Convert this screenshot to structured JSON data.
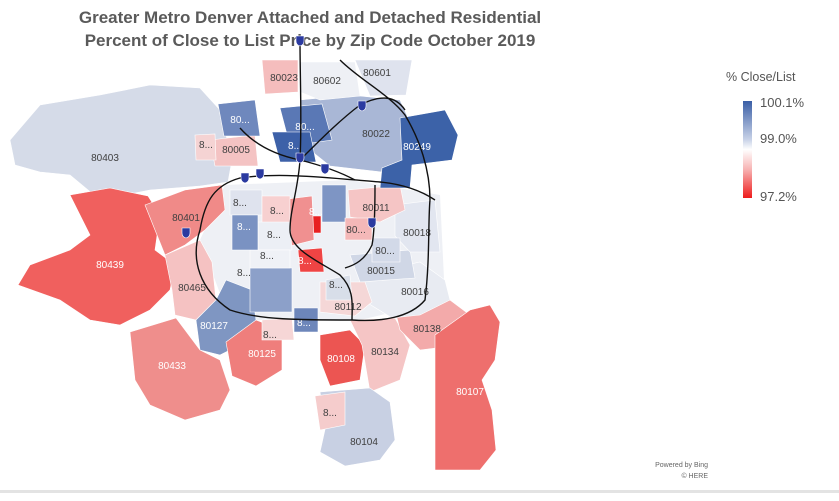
{
  "title": {
    "line1": "Greater Metro Denver Attached and Detached Residential",
    "line2": "Percent of Close to List Price by Zip Code October 2019"
  },
  "legend": {
    "title": "% Close/List",
    "max": "100.1%",
    "mid": "99.0%",
    "min": "97.2%",
    "colors": {
      "high": "#3a5fa6",
      "mid": "#ffffff",
      "low": "#ee1c1c"
    }
  },
  "attribution": {
    "line1": "Powered by Bing",
    "line2": "© HERE"
  },
  "regions": [
    {
      "label": "80403",
      "fill": "#d5dbe8"
    },
    {
      "label": "80439",
      "fill": "#f0605e"
    },
    {
      "label": "80401",
      "fill": "#f08a88"
    },
    {
      "label": "80465",
      "fill": "#f5c2c2"
    },
    {
      "label": "80127",
      "fill": "#7f96c2"
    },
    {
      "label": "80433",
      "fill": "#ef8e8c"
    },
    {
      "label": "80125",
      "fill": "#ef7e7c"
    },
    {
      "label": "80108",
      "fill": "#ec5552"
    },
    {
      "label": "80134",
      "fill": "#f5c5c5"
    },
    {
      "label": "80138",
      "fill": "#f3aaaa"
    },
    {
      "label": "80107",
      "fill": "#ee6f6d"
    },
    {
      "label": "80104",
      "fill": "#c8d0e3"
    },
    {
      "label": "8...",
      "fill": "#f5cccc"
    },
    {
      "label": "80016",
      "fill": "#e8ebf2"
    },
    {
      "label": "80015",
      "fill": "#d0d7e6"
    },
    {
      "label": "80018",
      "fill": "#e2e6f0"
    },
    {
      "label": "80011",
      "fill": "#f5c5c5"
    },
    {
      "label": "80022",
      "fill": "#a9b7d6"
    },
    {
      "label": "80249",
      "fill": "#3c62a8"
    },
    {
      "label": "80601",
      "fill": "#dfe3ee"
    },
    {
      "label": "80602",
      "fill": "#eef0f5"
    },
    {
      "label": "80023",
      "fill": "#f5bdbd"
    },
    {
      "label": "80005",
      "fill": "#f4c3c3"
    },
    {
      "label": "80112",
      "fill": "#f5d7d7"
    },
    {
      "label": "80...",
      "fill": "#6f88bd"
    },
    {
      "label": "8...",
      "fill": "#f5d3d3"
    },
    {
      "label": "80...",
      "fill": "#5a78b5"
    },
    {
      "label": "8...",
      "fill": "#3d61a8"
    },
    {
      "label": "8...",
      "fill": "#ef4444"
    },
    {
      "label": "",
      "fill": "#e82020"
    },
    {
      "label": "8...",
      "fill": "#f09090"
    },
    {
      "label": "",
      "fill": "#7e95c4"
    },
    {
      "label": "8...",
      "fill": "#8ca0c9"
    },
    {
      "label": "8...",
      "fill": "#6d86ba"
    },
    {
      "label": "8...",
      "fill": "#dfe3ee"
    },
    {
      "label": "8...",
      "fill": "#f7d0d0"
    },
    {
      "label": "80...",
      "fill": "#f4b8b8"
    },
    {
      "label": "8...",
      "fill": "#eceff5"
    },
    {
      "label": "8...",
      "fill": "#eff1f6"
    },
    {
      "label": "8...",
      "fill": "#7a92c2"
    },
    {
      "label": "8...",
      "fill": "#f6d6d6"
    },
    {
      "label": "80...",
      "fill": "#d2d9e8"
    },
    {
      "label": "8...",
      "fill": "#d8dee9"
    }
  ]
}
